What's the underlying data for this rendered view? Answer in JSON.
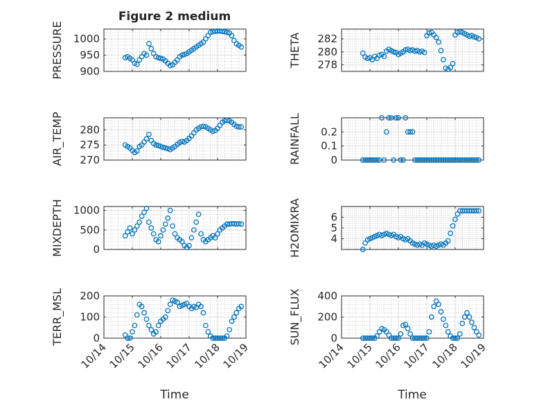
{
  "figure": {
    "title": "Figure 2 medium",
    "xlabel": "Time",
    "x_ticks": [
      "10/14",
      "10/15",
      "10/16",
      "10/17",
      "10/18",
      "10/19"
    ]
  },
  "colors": {
    "marker": "#0072BD",
    "axes": "#262626",
    "grid": "#B0B0B0"
  },
  "chart_data": [
    {
      "type": "scatter",
      "ylabel": "PRESSURE",
      "ylim": [
        900,
        1030
      ],
      "yticks": [
        900,
        950,
        1000
      ],
      "grid": true,
      "x": [
        "10/14 18:00",
        "10/14 20:00",
        "10/14 22:00",
        "10/15 00:00",
        "10/15 02:00",
        "10/15 04:00",
        "10/15 06:00",
        "10/15 08:00",
        "10/15 10:00",
        "10/15 12:00",
        "10/15 14:00",
        "10/15 16:00",
        "10/15 18:00",
        "10/15 20:00",
        "10/15 22:00",
        "10/16 00:00",
        "10/16 02:00",
        "10/16 04:00",
        "10/16 06:00",
        "10/16 08:00",
        "10/16 10:00",
        "10/16 12:00",
        "10/16 14:00",
        "10/16 16:00",
        "10/16 18:00",
        "10/16 20:00",
        "10/16 22:00",
        "10/17 00:00",
        "10/17 02:00",
        "10/17 04:00",
        "10/17 06:00",
        "10/17 08:00",
        "10/17 10:00",
        "10/17 12:00",
        "10/17 14:00",
        "10/17 16:00",
        "10/17 18:00",
        "10/17 20:00",
        "10/17 22:00",
        "10/18 00:00",
        "10/18 02:00",
        "10/18 04:00",
        "10/18 06:00",
        "10/18 08:00",
        "10/18 10:00",
        "10/18 12:00",
        "10/18 14:00",
        "10/18 16:00",
        "10/18 18:00",
        "10/18 20:00"
      ],
      "y": [
        942,
        945,
        940,
        935,
        925,
        922,
        935,
        945,
        955,
        950,
        985,
        970,
        955,
        945,
        942,
        940,
        938,
        932,
        925,
        918,
        920,
        928,
        935,
        945,
        950,
        952,
        955,
        960,
        965,
        970,
        975,
        980,
        985,
        990,
        1000,
        1010,
        1020,
        1022,
        1023,
        1024,
        1024,
        1023,
        1022,
        1020,
        1018,
        1010,
        995,
        985,
        980,
        975
      ]
    },
    {
      "type": "scatter",
      "ylabel": "THETA",
      "ylim": [
        277,
        283.5
      ],
      "yticks": [
        278,
        280,
        282
      ],
      "grid": true,
      "x": [
        "10/14 18:00",
        "10/14 20:00",
        "10/14 22:00",
        "10/15 00:00",
        "10/15 02:00",
        "10/15 04:00",
        "10/15 06:00",
        "10/15 08:00",
        "10/15 10:00",
        "10/15 12:00",
        "10/15 14:00",
        "10/15 16:00",
        "10/15 18:00",
        "10/15 20:00",
        "10/15 22:00",
        "10/16 00:00",
        "10/16 02:00",
        "10/16 04:00",
        "10/16 06:00",
        "10/16 08:00",
        "10/16 10:00",
        "10/16 12:00",
        "10/16 14:00",
        "10/16 16:00",
        "10/16 18:00",
        "10/16 20:00",
        "10/16 22:00",
        "10/17 00:00",
        "10/17 02:00",
        "10/17 04:00",
        "10/17 06:00",
        "10/17 08:00",
        "10/17 10:00",
        "10/17 12:00",
        "10/17 14:00",
        "10/17 16:00",
        "10/17 18:00",
        "10/17 20:00",
        "10/17 22:00",
        "10/18 00:00",
        "10/18 02:00",
        "10/18 04:00",
        "10/18 06:00",
        "10/18 08:00",
        "10/18 10:00",
        "10/18 12:00",
        "10/18 14:00",
        "10/18 16:00",
        "10/18 18:00",
        "10/18 20:00"
      ],
      "y": [
        279.8,
        279.2,
        279.0,
        279.1,
        278.8,
        279.3,
        279.0,
        279.5,
        279.6,
        279.3,
        280.1,
        280.4,
        280.2,
        280.0,
        279.9,
        279.6,
        279.8,
        280.0,
        280.3,
        280.4,
        280.2,
        280.3,
        280.1,
        280.2,
        280.0,
        280.1,
        279.9,
        282.5,
        282.9,
        283.0,
        282.6,
        282.2,
        281.5,
        280.2,
        278.8,
        277.5,
        277.3,
        277.6,
        278.2,
        282.6,
        283.0,
        283.1,
        283.0,
        282.8,
        282.6,
        282.4,
        282.5,
        282.3,
        282.2,
        282.0
      ]
    },
    {
      "type": "scatter",
      "ylabel": "AIR_TEMP",
      "ylim": [
        270,
        284
      ],
      "yticks": [
        270,
        275,
        280
      ],
      "grid": true,
      "x": [
        "10/14 18:00",
        "10/14 20:00",
        "10/14 22:00",
        "10/15 00:00",
        "10/15 02:00",
        "10/15 04:00",
        "10/15 06:00",
        "10/15 08:00",
        "10/15 10:00",
        "10/15 12:00",
        "10/15 14:00",
        "10/15 16:00",
        "10/15 18:00",
        "10/15 20:00",
        "10/15 22:00",
        "10/16 00:00",
        "10/16 02:00",
        "10/16 04:00",
        "10/16 06:00",
        "10/16 08:00",
        "10/16 10:00",
        "10/16 12:00",
        "10/16 14:00",
        "10/16 16:00",
        "10/16 18:00",
        "10/16 20:00",
        "10/16 22:00",
        "10/17 00:00",
        "10/17 02:00",
        "10/17 04:00",
        "10/17 06:00",
        "10/17 08:00",
        "10/17 10:00",
        "10/17 12:00",
        "10/17 14:00",
        "10/17 16:00",
        "10/17 18:00",
        "10/17 20:00",
        "10/17 22:00",
        "10/18 00:00",
        "10/18 02:00",
        "10/18 04:00",
        "10/18 06:00",
        "10/18 08:00",
        "10/18 10:00",
        "10/18 12:00",
        "10/18 14:00",
        "10/18 16:00",
        "10/18 18:00",
        "10/18 20:00"
      ],
      "y": [
        275.0,
        274.5,
        274.0,
        273.2,
        272.5,
        273.0,
        274.5,
        275.0,
        276.0,
        277.0,
        278.5,
        276.5,
        275.5,
        275.0,
        274.8,
        274.5,
        274.2,
        274.0,
        273.8,
        273.5,
        274.0,
        274.5,
        275.2,
        275.8,
        276.2,
        276.0,
        276.5,
        277.2,
        278.0,
        279.0,
        280.0,
        280.5,
        281.0,
        281.2,
        281.0,
        280.5,
        280.0,
        279.5,
        279.8,
        280.5,
        281.5,
        282.5,
        283.0,
        283.2,
        283.0,
        282.5,
        281.8,
        281.2,
        281.0,
        281.0
      ]
    },
    {
      "type": "scatter",
      "ylabel": "RAINFALL",
      "ylim": [
        0,
        0.3
      ],
      "yticks": [
        0,
        0.1,
        0.2
      ],
      "grid": true,
      "x": [
        "10/14 18:00",
        "10/14 20:00",
        "10/14 22:00",
        "10/15 00:00",
        "10/15 02:00",
        "10/15 04:00",
        "10/15 06:00",
        "10/15 08:00",
        "10/15 10:00",
        "10/15 12:00",
        "10/15 14:00",
        "10/15 16:00",
        "10/15 18:00",
        "10/15 20:00",
        "10/15 22:00",
        "10/16 00:00",
        "10/16 02:00",
        "10/16 04:00",
        "10/16 06:00",
        "10/16 08:00",
        "10/16 10:00",
        "10/16 12:00",
        "10/16 14:00",
        "10/16 16:00",
        "10/16 18:00",
        "10/16 20:00",
        "10/16 22:00",
        "10/17 00:00",
        "10/17 02:00",
        "10/17 04:00",
        "10/17 06:00",
        "10/17 08:00",
        "10/17 10:00",
        "10/17 12:00",
        "10/17 14:00",
        "10/17 16:00",
        "10/17 18:00",
        "10/17 20:00",
        "10/17 22:00",
        "10/18 00:00",
        "10/18 02:00",
        "10/18 04:00",
        "10/18 06:00",
        "10/18 08:00",
        "10/18 10:00",
        "10/18 12:00",
        "10/18 14:00",
        "10/18 16:00",
        "10/18 18:00",
        "10/18 20:00"
      ],
      "y": [
        0,
        0,
        0,
        0,
        0,
        0,
        0,
        0,
        0.3,
        0,
        0.2,
        0.3,
        0.3,
        0,
        0.3,
        0.3,
        0,
        0,
        0.3,
        0.2,
        0.2,
        0.2,
        0,
        0,
        0,
        0,
        0,
        0,
        0,
        0,
        0,
        0,
        0,
        0,
        0,
        0,
        0,
        0,
        0,
        0,
        0,
        0,
        0,
        0,
        0,
        0,
        0,
        0,
        0,
        0
      ]
    },
    {
      "type": "scatter",
      "ylabel": "MIXDEPTH",
      "ylim": [
        0,
        1100
      ],
      "yticks": [
        0,
        500,
        1000
      ],
      "grid": true,
      "x": [
        "10/14 18:00",
        "10/14 20:00",
        "10/14 22:00",
        "10/15 00:00",
        "10/15 02:00",
        "10/15 04:00",
        "10/15 06:00",
        "10/15 08:00",
        "10/15 10:00",
        "10/15 12:00",
        "10/15 14:00",
        "10/15 16:00",
        "10/15 18:00",
        "10/15 20:00",
        "10/15 22:00",
        "10/16 00:00",
        "10/16 02:00",
        "10/16 04:00",
        "10/16 06:00",
        "10/16 08:00",
        "10/16 10:00",
        "10/16 12:00",
        "10/16 14:00",
        "10/16 16:00",
        "10/16 18:00",
        "10/16 20:00",
        "10/16 22:00",
        "10/17 00:00",
        "10/17 02:00",
        "10/17 04:00",
        "10/17 06:00",
        "10/17 08:00",
        "10/17 10:00",
        "10/17 12:00",
        "10/17 14:00",
        "10/17 16:00",
        "10/17 18:00",
        "10/17 20:00",
        "10/17 22:00",
        "10/18 00:00",
        "10/18 02:00",
        "10/18 04:00",
        "10/18 06:00",
        "10/18 08:00",
        "10/18 10:00",
        "10/18 12:00",
        "10/18 14:00",
        "10/18 16:00",
        "10/18 18:00",
        "10/18 20:00"
      ],
      "y": [
        350,
        450,
        550,
        400,
        500,
        600,
        700,
        850,
        950,
        1050,
        700,
        550,
        400,
        250,
        200,
        350,
        500,
        650,
        800,
        1000,
        600,
        400,
        300,
        250,
        200,
        100,
        50,
        100,
        300,
        500,
        700,
        900,
        400,
        250,
        200,
        250,
        300,
        350,
        300,
        400,
        500,
        550,
        600,
        650,
        650,
        660,
        660,
        650,
        660,
        650
      ]
    },
    {
      "type": "scatter",
      "ylabel": "H2OMIXRA",
      "ylim": [
        3,
        7
      ],
      "yticks": [
        4,
        5,
        6
      ],
      "grid": true,
      "x": [
        "10/14 18:00",
        "10/14 20:00",
        "10/14 22:00",
        "10/15 00:00",
        "10/15 02:00",
        "10/15 04:00",
        "10/15 06:00",
        "10/15 08:00",
        "10/15 10:00",
        "10/15 12:00",
        "10/15 14:00",
        "10/15 16:00",
        "10/15 18:00",
        "10/15 20:00",
        "10/15 22:00",
        "10/16 00:00",
        "10/16 02:00",
        "10/16 04:00",
        "10/16 06:00",
        "10/16 08:00",
        "10/16 10:00",
        "10/16 12:00",
        "10/16 14:00",
        "10/16 16:00",
        "10/16 18:00",
        "10/16 20:00",
        "10/16 22:00",
        "10/17 00:00",
        "10/17 02:00",
        "10/17 04:00",
        "10/17 06:00",
        "10/17 08:00",
        "10/17 10:00",
        "10/17 12:00",
        "10/17 14:00",
        "10/17 16:00",
        "10/17 18:00",
        "10/17 20:00",
        "10/17 22:00",
        "10/18 00:00",
        "10/18 02:00",
        "10/18 04:00",
        "10/18 06:00",
        "10/18 08:00",
        "10/18 10:00",
        "10/18 12:00",
        "10/18 14:00",
        "10/18 16:00",
        "10/18 18:00",
        "10/18 20:00"
      ],
      "y": [
        3.0,
        3.6,
        3.9,
        4.0,
        4.1,
        4.2,
        4.3,
        4.4,
        4.3,
        4.4,
        4.5,
        4.4,
        4.3,
        4.4,
        4.2,
        4.1,
        4.2,
        4.0,
        3.9,
        4.0,
        3.8,
        3.6,
        3.5,
        3.4,
        3.5,
        3.4,
        3.6,
        3.5,
        3.4,
        3.3,
        3.4,
        3.3,
        3.4,
        3.5,
        3.4,
        3.6,
        3.8,
        4.5,
        5.2,
        5.8,
        6.3,
        6.6,
        6.6,
        6.6,
        6.6,
        6.6,
        6.6,
        6.6,
        6.6,
        6.6
      ]
    },
    {
      "type": "scatter",
      "ylabel": "TERR_MSL",
      "ylim": [
        0,
        200
      ],
      "yticks": [
        0,
        100,
        200
      ],
      "grid": true,
      "x": [
        "10/14 18:00",
        "10/14 20:00",
        "10/14 22:00",
        "10/15 00:00",
        "10/15 02:00",
        "10/15 04:00",
        "10/15 06:00",
        "10/15 08:00",
        "10/15 10:00",
        "10/15 12:00",
        "10/15 14:00",
        "10/15 16:00",
        "10/15 18:00",
        "10/15 20:00",
        "10/15 22:00",
        "10/16 00:00",
        "10/16 02:00",
        "10/16 04:00",
        "10/16 06:00",
        "10/16 08:00",
        "10/16 10:00",
        "10/16 12:00",
        "10/16 14:00",
        "10/16 16:00",
        "10/16 18:00",
        "10/16 20:00",
        "10/16 22:00",
        "10/17 00:00",
        "10/17 02:00",
        "10/17 04:00",
        "10/17 06:00",
        "10/17 08:00",
        "10/17 10:00",
        "10/17 12:00",
        "10/17 14:00",
        "10/17 16:00",
        "10/17 18:00",
        "10/17 20:00",
        "10/17 22:00",
        "10/18 00:00",
        "10/18 02:00",
        "10/18 04:00",
        "10/18 06:00",
        "10/18 08:00",
        "10/18 10:00",
        "10/18 12:00",
        "10/18 14:00",
        "10/18 16:00",
        "10/18 18:00",
        "10/18 20:00"
      ],
      "y": [
        15,
        0,
        0,
        30,
        60,
        110,
        160,
        150,
        120,
        90,
        60,
        40,
        20,
        30,
        60,
        80,
        90,
        100,
        130,
        160,
        180,
        175,
        170,
        150,
        155,
        160,
        165,
        150,
        140,
        150,
        145,
        160,
        150,
        120,
        60,
        30,
        10,
        0,
        0,
        0,
        0,
        0,
        0,
        10,
        40,
        80,
        100,
        120,
        140,
        150
      ]
    },
    {
      "type": "scatter",
      "ylabel": "SUN_FLUX",
      "ylim": [
        0,
        400
      ],
      "yticks": [
        0,
        200,
        400
      ],
      "grid": true,
      "x": [
        "10/14 18:00",
        "10/14 20:00",
        "10/14 22:00",
        "10/15 00:00",
        "10/15 02:00",
        "10/15 04:00",
        "10/15 06:00",
        "10/15 08:00",
        "10/15 10:00",
        "10/15 12:00",
        "10/15 14:00",
        "10/15 16:00",
        "10/15 18:00",
        "10/15 20:00",
        "10/15 22:00",
        "10/16 00:00",
        "10/16 02:00",
        "10/16 04:00",
        "10/16 06:00",
        "10/16 08:00",
        "10/16 10:00",
        "10/16 12:00",
        "10/16 14:00",
        "10/16 16:00",
        "10/16 18:00",
        "10/16 20:00",
        "10/16 22:00",
        "10/17 00:00",
        "10/17 02:00",
        "10/17 04:00",
        "10/17 06:00",
        "10/17 08:00",
        "10/17 10:00",
        "10/17 12:00",
        "10/17 14:00",
        "10/17 16:00",
        "10/17 18:00",
        "10/17 20:00",
        "10/17 22:00",
        "10/18 00:00",
        "10/18 02:00",
        "10/18 04:00",
        "10/18 06:00",
        "10/18 08:00",
        "10/18 10:00",
        "10/18 12:00",
        "10/18 14:00",
        "10/18 16:00",
        "10/18 18:00",
        "10/18 20:00"
      ],
      "y": [
        0,
        0,
        0,
        0,
        0,
        0,
        20,
        60,
        90,
        80,
        60,
        30,
        0,
        0,
        0,
        0,
        40,
        120,
        130,
        90,
        40,
        0,
        0,
        0,
        0,
        0,
        0,
        0,
        60,
        200,
        300,
        350,
        320,
        250,
        180,
        120,
        60,
        20,
        0,
        0,
        0,
        40,
        140,
        200,
        240,
        200,
        150,
        100,
        60,
        30
      ]
    }
  ]
}
